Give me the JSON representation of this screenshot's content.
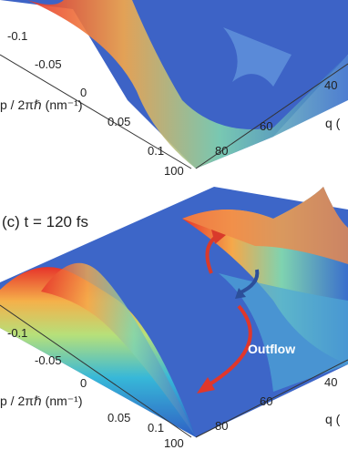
{
  "panels": [
    {
      "p_ticks": [
        "-0.1",
        "-0.05",
        "0",
        "0.05",
        "0.1"
      ],
      "q_ticks": [
        "100",
        "80",
        "60",
        "40"
      ],
      "p_label": "p / 2πℏ (nm⁻¹)",
      "q_label": "q ("
    },
    {
      "title": "(c) t = 120 fs",
      "p_ticks": [
        "-0.1",
        "-0.05",
        "0",
        "0.05",
        "0.1"
      ],
      "q_ticks": [
        "100",
        "80",
        "60",
        "40"
      ],
      "p_label": "p / 2πℏ (nm⁻¹)",
      "q_label": "q (",
      "annotation": "Outflow"
    }
  ]
}
